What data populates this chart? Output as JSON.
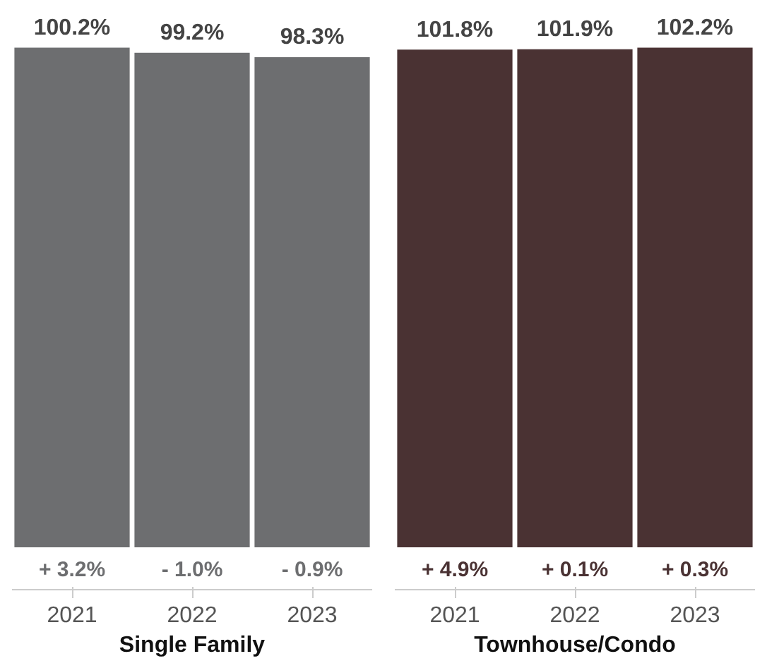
{
  "chart_data": [
    {
      "type": "bar",
      "xlabel": "Single Family",
      "categories": [
        "2021",
        "2022",
        "2023"
      ],
      "values": [
        100.2,
        99.2,
        98.3
      ],
      "value_labels": [
        "100.2%",
        "99.2%",
        "98.3%"
      ],
      "color": "#6d6e70",
      "grid": false,
      "annotations": [
        "+ 3.2%",
        "- 1.0%",
        "- 0.9%"
      ]
    },
    {
      "type": "bar",
      "xlabel": "Townhouse/Condo",
      "categories": [
        "2021",
        "2022",
        "2023"
      ],
      "values": [
        101.8,
        101.9,
        102.2
      ],
      "value_labels": [
        "101.8%",
        "101.9%",
        "102.2%"
      ],
      "color": "#4a3233",
      "grid": false,
      "annotations": [
        "+ 4.9%",
        "+ 0.1%",
        "+ 0.3%"
      ]
    }
  ]
}
